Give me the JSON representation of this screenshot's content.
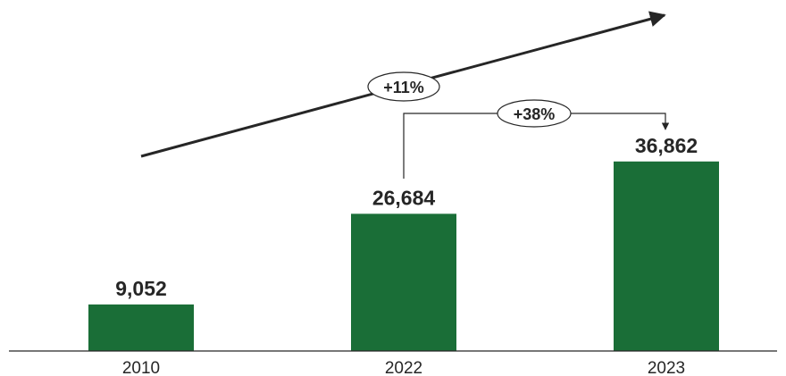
{
  "chart_data": {
    "type": "bar",
    "categories": [
      "2010",
      "2022",
      "2023"
    ],
    "values": [
      9052,
      26684,
      36862
    ],
    "value_labels": [
      "9,052",
      "26,684",
      "36,862"
    ],
    "title": "",
    "xlabel": "",
    "ylabel": "",
    "ylim": [
      0,
      37000
    ],
    "grid": false,
    "legend": "none",
    "bar_color": "#1a6e37",
    "annotations": [
      {
        "label": "+11%",
        "kind": "trend-arrow"
      },
      {
        "label": "+38%",
        "kind": "bracket-arrow",
        "from": "2022",
        "to": "2023"
      }
    ]
  }
}
